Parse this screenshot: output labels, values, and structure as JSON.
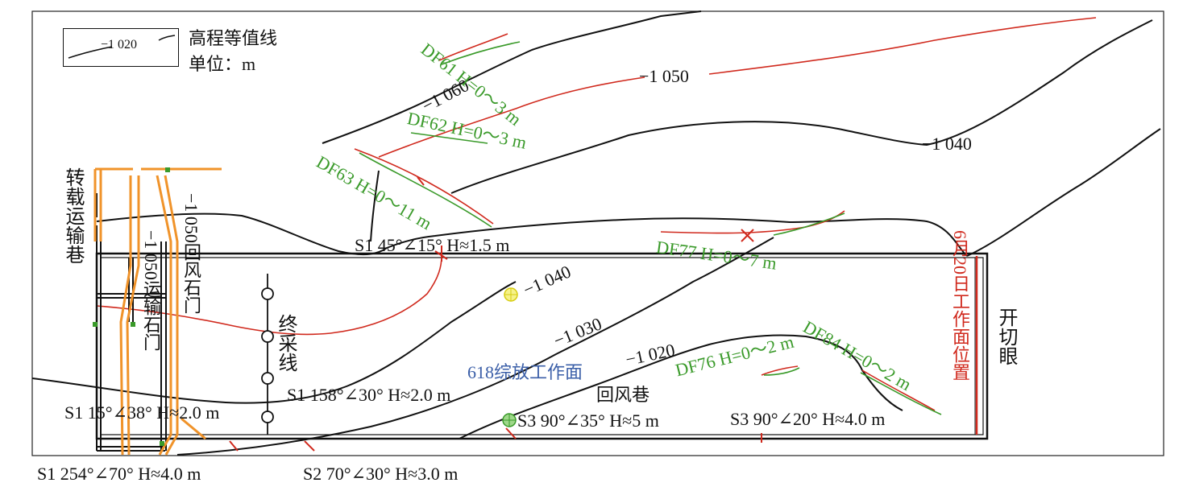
{
  "legend": {
    "sample_value": "−1 020",
    "title": "高程等值线",
    "unit": "单位：m"
  },
  "contours": [
    "−1 060",
    "−1 050",
    "−1 040",
    "−1 040",
    "−1 030",
    "−1 020"
  ],
  "faults": {
    "df61": "DF61 H=0～3 m",
    "df62": "DF62 H=0～3 m",
    "df63": "DF63 H=0～11 m",
    "df77": "DF77 H=0～7 m",
    "df76": "DF76 H=0～2 m",
    "df84": "DF84 H=0～2 m"
  },
  "structures": {
    "s1_45": "S1 45°∠15° H≈1.5 m",
    "s1_158": "S1 158°∠30° H≈2.0 m",
    "s1_15": "S1 15°∠38° H≈2.0 m",
    "s1_254": "S1 254°∠70° H≈4.0 m",
    "s2_70": "S2 70°∠30° H≈3.0 m",
    "s3_90_35": "S3 90°∠35° H≈5 m",
    "s3_90_20": "S3 90°∠20° H≈4.0 m"
  },
  "roadways": {
    "transfer": "转载运输巷",
    "haul_crosscut": "−1 050运输石门",
    "return_crosscut": "−1 050回风石门",
    "stop_line": "终采线",
    "return_airway": "回风巷",
    "cut_hole": "开切眼",
    "face_position": "6月20日工作面位置"
  },
  "face_name": "618综放工作面",
  "colors": {
    "contour": "#111111",
    "fault": "#3a9a2a",
    "fault_trace": "#d0291d",
    "roadway_orange": "#f0932a",
    "face_text": "#3b5fa8",
    "marker": "#e8e21a"
  }
}
